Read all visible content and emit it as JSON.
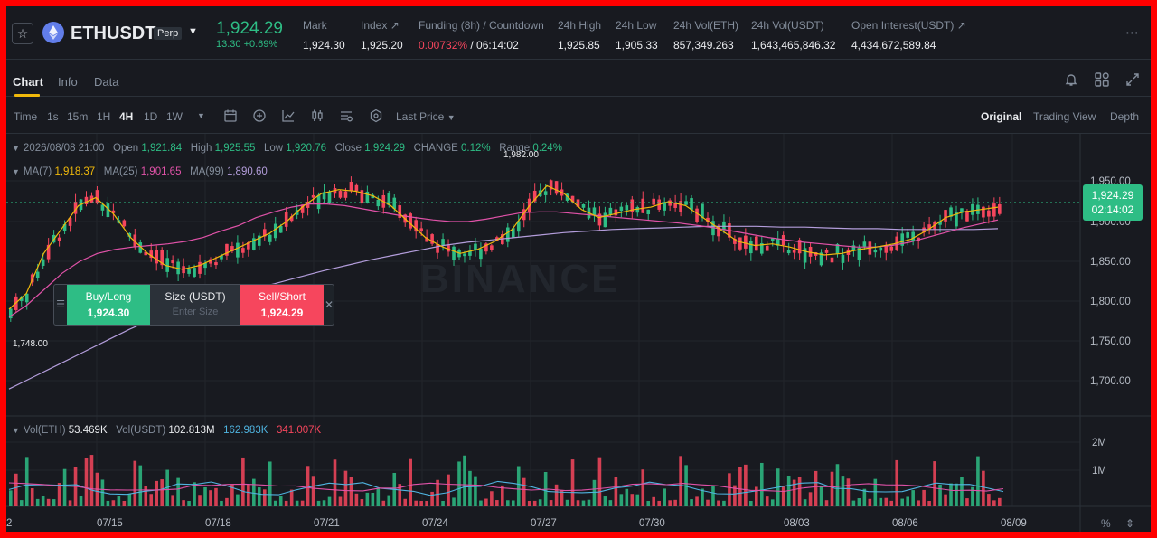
{
  "header": {
    "symbol": "ETHUSDT",
    "badge": "Perp",
    "last_price": "1,924.29",
    "change": "13.30 +0.69%",
    "stats": [
      {
        "label": "Mark",
        "value": "1,924.30"
      },
      {
        "label": "Index ↗",
        "value": "1,925.20"
      },
      {
        "label": "Funding (8h) / Countdown",
        "value_red": "0.00732%",
        "value": " / 06:14:02"
      },
      {
        "label": "24h High",
        "value": "1,925.85"
      },
      {
        "label": "24h Low",
        "value": "1,905.33"
      },
      {
        "label": "24h Vol(ETH)",
        "value": "857,349.263"
      },
      {
        "label": "24h Vol(USDT)",
        "value": "1,643,465,846.32"
      },
      {
        "label": "Open Interest(USDT) ↗",
        "value": "4,434,672,589.84"
      }
    ]
  },
  "tabs": {
    "chart": "Chart",
    "info": "Info",
    "data": "Data"
  },
  "toolbar": {
    "time": "Time",
    "intervals": [
      "1s",
      "15m",
      "1H",
      "4H",
      "1D",
      "1W"
    ],
    "active_interval": "4H",
    "price_type": "Last Price",
    "views": [
      "Original",
      "Trading View",
      "Depth"
    ]
  },
  "ohlc": {
    "date": "2026/08/08 21:00",
    "open_label": "Open",
    "open": "1,921.84",
    "high_label": "High",
    "high": "1,925.55",
    "low_label": "Low",
    "low": "1,920.76",
    "close_label": "Close",
    "close": "1,924.29",
    "change_label": "CHANGE",
    "change": "0.12%",
    "range_label": "Range",
    "range": "0.24%"
  },
  "ma": {
    "ma7_label": "MA(7)",
    "ma7": "1,918.37",
    "ma25_label": "MA(25)",
    "ma25": "1,901.65",
    "ma99_label": "MA(99)",
    "ma99": "1,890.60"
  },
  "volume": {
    "label": "Vol(ETH)",
    "eth": "53.469K",
    "usdt_label": "Vol(USDT)",
    "usdt": "102.813M",
    "ma1": "162.983K",
    "ma2": "341.007K"
  },
  "price_tag": {
    "price": "1,924.29",
    "countdown": "02:14:02"
  },
  "order_panel": {
    "buy_label": "Buy/Long",
    "buy_price": "1,924.30",
    "size_label": "Size (USDT)",
    "size_placeholder": "Enter Size",
    "sell_label": "Sell/Short",
    "sell_price": "1,924.29"
  },
  "annotations": {
    "high": "1,982.00",
    "low": "1,748.00"
  },
  "watermark": "BINANCE",
  "colors": {
    "up": "#2ebd85",
    "down": "#f6465d",
    "ma7": "#f0b90b",
    "ma25": "#e052a8",
    "ma99": "#b39ddb",
    "accent": "#f0b90b"
  },
  "chart_data": {
    "type": "candlestick",
    "y_axis_ticks": [
      "1,950.00",
      "1,900.00",
      "1,850.00",
      "1,800.00",
      "1,750.00",
      "1,700.00"
    ],
    "ylim": [
      1676,
      1982
    ],
    "x_axis_ticks": [
      "2",
      "07/15",
      "07/18",
      "07/21",
      "07/24",
      "07/27",
      "07/30",
      "08/03",
      "08/06",
      "08/09"
    ],
    "volume_ticks": [
      "2M",
      "1M"
    ],
    "ma7": [
      1790,
      1810,
      1860,
      1890,
      1920,
      1930,
      1910,
      1880,
      1860,
      1845,
      1840,
      1845,
      1855,
      1865,
      1875,
      1885,
      1900,
      1920,
      1935,
      1940,
      1938,
      1932,
      1920,
      1900,
      1880,
      1868,
      1860,
      1865,
      1875,
      1890,
      1920,
      1945,
      1935,
      1915,
      1905,
      1910,
      1915,
      1918,
      1925,
      1920,
      1905,
      1890,
      1875,
      1870,
      1872,
      1868,
      1862,
      1858,
      1860,
      1865,
      1868,
      1872,
      1878,
      1890,
      1905,
      1912,
      1915,
      1918
    ],
    "ma25": [
      1780,
      1795,
      1815,
      1835,
      1850,
      1860,
      1865,
      1868,
      1870,
      1872,
      1875,
      1880,
      1888,
      1895,
      1905,
      1912,
      1918,
      1922,
      1922,
      1920,
      1916,
      1912,
      1908,
      1905,
      1902,
      1900,
      1900,
      1903,
      1907,
      1911,
      1912,
      1912,
      1910,
      1908,
      1906,
      1904,
      1902,
      1900,
      1898,
      1895,
      1892,
      1888,
      1884,
      1880,
      1877,
      1874,
      1872,
      1870,
      1868,
      1868,
      1870,
      1874,
      1880,
      1886,
      1892,
      1897,
      1902
    ],
    "ma99": [
      1690,
      1705,
      1720,
      1735,
      1750,
      1765,
      1778,
      1790,
      1800,
      1808,
      1815,
      1822,
      1830,
      1838,
      1845,
      1852,
      1858,
      1864,
      1870,
      1874,
      1877,
      1880,
      1883,
      1886,
      1888,
      1890,
      1891,
      1892,
      1893,
      1894,
      1894,
      1894,
      1893,
      1893,
      1892,
      1891,
      1891,
      1890,
      1890,
      1890,
      1890,
      1891
    ]
  }
}
